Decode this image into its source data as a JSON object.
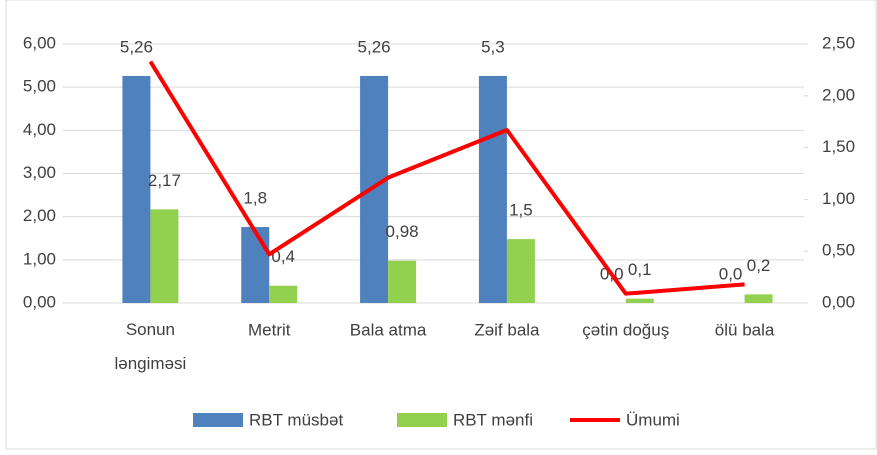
{
  "chart_data": {
    "type": "bar-line",
    "categories": [
      "Sonun ləngiməsi",
      "Metrit",
      "Bala atma",
      "Zəif bala",
      "çətin doğuş",
      "ölü bala"
    ],
    "series": [
      {
        "name": "RBT müsbət",
        "color": "#4f81bd",
        "type": "bar",
        "values": [
          5.26,
          1.76,
          5.26,
          5.26,
          0,
          0
        ],
        "value_labels": [
          "5,26",
          "1,8",
          "5,26",
          "5,3",
          "0,0",
          "0,0"
        ]
      },
      {
        "name": "RBT mənfi",
        "color": "#92d050",
        "type": "bar",
        "values": [
          2.17,
          0.4,
          0.98,
          1.48,
          0.1,
          0.2
        ],
        "value_labels": [
          "2,17",
          "0,4",
          "0,98",
          "1,5",
          "0,1",
          "0,2"
        ]
      },
      {
        "name": "Ümumi",
        "color": "#ff0000",
        "type": "line",
        "axis": "y2",
        "values": [
          2.33,
          0.47,
          1.21,
          1.67,
          0.09,
          0.18
        ]
      }
    ],
    "ylim": [
      0,
      6
    ],
    "yticks": [
      {
        "value": 0,
        "label": "0,00"
      },
      {
        "value": 1,
        "label": "1,00"
      },
      {
        "value": 2,
        "label": "2,00"
      },
      {
        "value": 3,
        "label": "3,00"
      },
      {
        "value": 4,
        "label": "4,00"
      },
      {
        "value": 5,
        "label": "5,00"
      },
      {
        "value": 6,
        "label": "6,00"
      }
    ],
    "y2lim": [
      0,
      2.5
    ],
    "y2ticks": [
      {
        "value": 0,
        "label": "0,00"
      },
      {
        "value": 0.5,
        "label": "0,50"
      },
      {
        "value": 1,
        "label": "1,00"
      },
      {
        "value": 1.5,
        "label": "1,50"
      },
      {
        "value": 2,
        "label": "2,00"
      },
      {
        "value": 2.5,
        "label": "2,50"
      }
    ],
    "grid": true,
    "legend": "bottom"
  }
}
